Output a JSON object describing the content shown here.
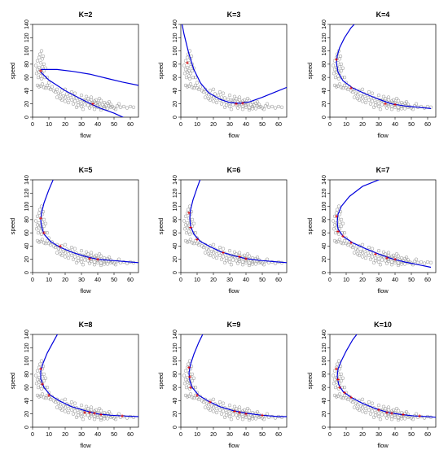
{
  "figure": {
    "panels": [
      {
        "title": "K=2",
        "xlabel": "flow",
        "ylabel": "speed"
      },
      {
        "title": "K=3",
        "xlabel": "flow",
        "ylabel": "speed"
      },
      {
        "title": "K=4",
        "xlabel": "flow",
        "ylabel": "speed"
      },
      {
        "title": "K=5",
        "xlabel": "flow",
        "ylabel": "speed"
      },
      {
        "title": "K=6",
        "xlabel": "flow",
        "ylabel": "speed"
      },
      {
        "title": "K=7",
        "xlabel": "flow",
        "ylabel": "speed"
      },
      {
        "title": "K=8",
        "xlabel": "flow",
        "ylabel": "speed"
      },
      {
        "title": "K=9",
        "xlabel": "flow",
        "ylabel": "speed"
      },
      {
        "title": "K=10",
        "xlabel": "flow",
        "ylabel": "speed"
      }
    ]
  },
  "chart_data": {
    "type": "scatter",
    "xlim": [
      0,
      65
    ],
    "ylim": [
      0,
      140
    ],
    "x_ticks": [
      0,
      10,
      20,
      30,
      40,
      50,
      60
    ],
    "y_ticks": [
      0,
      20,
      40,
      60,
      80,
      100,
      120,
      140
    ],
    "colors": {
      "points": "#8c8c8c",
      "curve": "#0000dd",
      "knots": "#dd0000"
    },
    "scatter_points": [
      [
        2,
        78
      ],
      [
        2.5,
        66
      ],
      [
        3,
        85
      ],
      [
        3,
        72
      ],
      [
        3.5,
        60
      ],
      [
        4,
        90
      ],
      [
        4,
        75
      ],
      [
        4,
        68
      ],
      [
        4.5,
        95
      ],
      [
        5,
        82
      ],
      [
        5,
        70
      ],
      [
        5,
        62
      ],
      [
        5.5,
        100
      ],
      [
        5.5,
        58
      ],
      [
        6,
        88
      ],
      [
        6,
        76
      ],
      [
        6,
        66
      ],
      [
        6.5,
        92
      ],
      [
        7,
        80
      ],
      [
        7,
        70
      ],
      [
        7.5,
        60
      ],
      [
        8,
        74
      ],
      [
        3,
        48
      ],
      [
        4,
        46
      ],
      [
        5,
        47
      ],
      [
        6,
        50
      ],
      [
        7,
        45
      ],
      [
        8,
        44
      ],
      [
        9,
        48
      ],
      [
        10,
        44
      ],
      [
        9,
        60
      ],
      [
        10,
        52
      ],
      [
        11,
        42
      ],
      [
        12,
        46
      ],
      [
        13,
        40
      ],
      [
        14,
        38
      ],
      [
        15,
        42
      ],
      [
        16,
        36
      ],
      [
        17,
        34
      ],
      [
        18,
        40
      ],
      [
        19,
        32
      ],
      [
        20,
        30
      ],
      [
        21,
        35
      ],
      [
        22,
        28
      ],
      [
        23,
        33
      ],
      [
        24,
        26
      ],
      [
        25,
        30
      ],
      [
        26,
        24
      ],
      [
        27,
        29
      ],
      [
        28,
        22
      ],
      [
        29,
        27
      ],
      [
        30,
        21
      ],
      [
        31,
        26
      ],
      [
        32,
        19
      ],
      [
        33,
        24
      ],
      [
        34,
        18
      ],
      [
        35,
        23
      ],
      [
        36,
        17
      ],
      [
        37,
        22
      ],
      [
        38,
        16
      ],
      [
        39,
        21
      ],
      [
        40,
        15
      ],
      [
        41,
        20
      ],
      [
        42,
        14
      ],
      [
        43,
        19
      ],
      [
        44,
        16
      ],
      [
        45,
        18
      ],
      [
        46,
        13
      ],
      [
        47,
        17
      ],
      [
        48,
        15
      ],
      [
        49,
        16
      ],
      [
        50,
        14
      ],
      [
        52,
        17
      ],
      [
        54,
        15
      ],
      [
        56,
        16
      ],
      [
        58,
        14
      ],
      [
        60,
        16
      ],
      [
        62,
        15
      ],
      [
        15,
        30
      ],
      [
        18,
        26
      ],
      [
        22,
        22
      ],
      [
        25,
        20
      ],
      [
        28,
        18
      ],
      [
        30,
        16
      ],
      [
        32,
        25
      ],
      [
        34,
        28
      ],
      [
        36,
        26
      ],
      [
        38,
        24
      ],
      [
        40,
        22
      ],
      [
        42,
        25
      ],
      [
        44,
        22
      ],
      [
        46,
        21
      ],
      [
        30,
        33
      ],
      [
        33,
        31
      ],
      [
        36,
        30
      ],
      [
        26,
        36
      ],
      [
        24,
        38
      ],
      [
        20,
        42
      ],
      [
        35,
        14
      ],
      [
        38,
        12
      ],
      [
        40,
        18
      ],
      [
        42,
        11
      ],
      [
        44,
        13
      ],
      [
        48,
        19
      ],
      [
        51,
        12
      ],
      [
        53,
        20
      ],
      [
        20,
        24
      ],
      [
        17,
        28
      ],
      [
        27,
        15
      ],
      [
        31,
        12
      ],
      [
        36,
        20
      ],
      [
        39,
        26
      ],
      [
        41,
        28
      ],
      [
        47,
        23
      ]
    ],
    "panels": [
      {
        "title": "K=2",
        "curves": [
          [
            [
              5,
              72
            ],
            [
              15,
              72
            ],
            [
              25,
              69
            ],
            [
              35,
              65
            ],
            [
              45,
              59
            ],
            [
              55,
              53
            ],
            [
              65,
              48
            ]
          ],
          [
            [
              5,
              68
            ],
            [
              10,
              56
            ],
            [
              20,
              40
            ],
            [
              30,
              27
            ],
            [
              40,
              15
            ],
            [
              50,
              6
            ],
            [
              60,
              -5
            ]
          ]
        ],
        "knots": [
          [
            5,
            70
          ],
          [
            37,
            20
          ]
        ]
      },
      {
        "title": "K=3",
        "curves": [
          [
            [
              0,
              150
            ],
            [
              2,
              125
            ],
            [
              5,
              95
            ],
            [
              8,
              72
            ],
            [
              12,
              52
            ],
            [
              17,
              37
            ],
            [
              24,
              27
            ],
            [
              30,
              22
            ],
            [
              36,
              21
            ],
            [
              42,
              23
            ],
            [
              50,
              30
            ],
            [
              58,
              38
            ],
            [
              65,
              45
            ]
          ]
        ],
        "knots": [
          [
            4,
            82
          ],
          [
            34,
            20
          ],
          [
            38,
            21
          ]
        ]
      },
      {
        "title": "K=4",
        "curves": [
          [
            [
              18,
              148
            ],
            [
              13,
              135
            ],
            [
              9,
              120
            ],
            [
              6,
              105
            ],
            [
              4.5,
              93
            ],
            [
              4,
              82
            ],
            [
              5,
              68
            ],
            [
              8,
              55
            ],
            [
              14,
              44
            ],
            [
              22,
              35
            ],
            [
              30,
              27
            ],
            [
              38,
              20
            ],
            [
              46,
              17
            ],
            [
              54,
              15
            ],
            [
              62,
              13
            ]
          ]
        ],
        "knots": [
          [
            4,
            87
          ],
          [
            13,
            44
          ],
          [
            34,
            20
          ],
          [
            40,
            19
          ]
        ]
      },
      {
        "title": "K=5",
        "curves": [
          [
            [
              14,
              148
            ],
            [
              10,
              125
            ],
            [
              7,
              105
            ],
            [
              5.5,
              90
            ],
            [
              5,
              80
            ],
            [
              5.5,
              70
            ],
            [
              7,
              58
            ],
            [
              11,
              47
            ],
            [
              17,
              38
            ],
            [
              25,
              30
            ],
            [
              33,
              24
            ],
            [
              40,
              20
            ],
            [
              50,
              18
            ],
            [
              60,
              16
            ],
            [
              65,
              15
            ]
          ]
        ],
        "knots": [
          [
            5,
            82
          ],
          [
            7,
            60
          ],
          [
            17,
            40
          ],
          [
            35,
            21
          ],
          [
            40,
            20
          ]
        ]
      },
      {
        "title": "K=6",
        "curves": [
          [
            [
              13,
              148
            ],
            [
              10,
              128
            ],
            [
              7.5,
              110
            ],
            [
              6,
              95
            ],
            [
              5.5,
              82
            ],
            [
              6,
              70
            ],
            [
              8,
              58
            ],
            [
              12,
              47
            ],
            [
              18,
              39
            ],
            [
              25,
              31
            ],
            [
              33,
              25
            ],
            [
              40,
              21
            ],
            [
              50,
              18
            ],
            [
              60,
              16
            ],
            [
              65,
              15
            ]
          ]
        ],
        "knots": [
          [
            5,
            90
          ],
          [
            6,
            68
          ],
          [
            10,
            50
          ],
          [
            26,
            30
          ],
          [
            36,
            24
          ],
          [
            40,
            21
          ]
        ]
      },
      {
        "title": "K=7",
        "curves": [
          [
            [
              45,
              148
            ],
            [
              32,
              142
            ],
            [
              20,
              130
            ],
            [
              12,
              115
            ],
            [
              7,
              100
            ],
            [
              5,
              88
            ],
            [
              4.5,
              76
            ],
            [
              5,
              66
            ],
            [
              8,
              55
            ],
            [
              14,
              45
            ],
            [
              22,
              36
            ],
            [
              30,
              28
            ],
            [
              38,
              21
            ],
            [
              46,
              16
            ],
            [
              54,
              12
            ],
            [
              62,
              8
            ]
          ]
        ],
        "knots": [
          [
            4,
            85
          ],
          [
            5,
            62
          ],
          [
            8,
            55
          ],
          [
            13,
            45
          ],
          [
            28,
            28
          ],
          [
            35,
            22
          ],
          [
            40,
            20
          ]
        ]
      },
      {
        "title": "K=8",
        "curves": [
          [
            [
              17,
              148
            ],
            [
              13,
              130
            ],
            [
              9,
              112
            ],
            [
              6.5,
              97
            ],
            [
              5,
              85
            ],
            [
              5,
              73
            ],
            [
              7,
              60
            ],
            [
              11,
              48
            ],
            [
              17,
              39
            ],
            [
              24,
              31
            ],
            [
              32,
              25
            ],
            [
              40,
              20
            ],
            [
              48,
              18
            ],
            [
              56,
              17
            ],
            [
              65,
              16
            ]
          ]
        ],
        "knots": [
          [
            5,
            88
          ],
          [
            6,
            65
          ],
          [
            10,
            48
          ],
          [
            32,
            22
          ],
          [
            35,
            22
          ],
          [
            38,
            21
          ],
          [
            42,
            19
          ],
          [
            55,
            17
          ]
        ]
      },
      {
        "title": "K=9",
        "curves": [
          [
            [
              15,
              148
            ],
            [
              11,
              128
            ],
            [
              8,
              110
            ],
            [
              6,
              95
            ],
            [
              5,
              82
            ],
            [
              5.5,
              70
            ],
            [
              7,
              60
            ],
            [
              11,
              48
            ],
            [
              17,
              39
            ],
            [
              24,
              31
            ],
            [
              32,
              25
            ],
            [
              40,
              21
            ],
            [
              50,
              18
            ],
            [
              60,
              16
            ],
            [
              65,
              16
            ]
          ]
        ],
        "knots": [
          [
            5,
            90
          ],
          [
            5.5,
            76
          ],
          [
            6,
            60
          ],
          [
            10,
            48
          ],
          [
            18,
            38
          ],
          [
            33,
            24
          ],
          [
            36,
            22
          ],
          [
            40,
            20
          ],
          [
            50,
            18
          ]
        ]
      },
      {
        "title": "K=10",
        "curves": [
          [
            [
              19,
              148
            ],
            [
              14,
              132
            ],
            [
              10,
              115
            ],
            [
              7,
              100
            ],
            [
              5,
              88
            ],
            [
              4.5,
              76
            ],
            [
              5.5,
              64
            ],
            [
              8,
              54
            ],
            [
              13,
              45
            ],
            [
              20,
              36
            ],
            [
              28,
              28
            ],
            [
              36,
              22
            ],
            [
              44,
              19
            ],
            [
              52,
              17
            ],
            [
              60,
              16
            ],
            [
              65,
              15
            ]
          ]
        ],
        "knots": [
          [
            4,
            88
          ],
          [
            5,
            72
          ],
          [
            6,
            60
          ],
          [
            9,
            52
          ],
          [
            13,
            45
          ],
          [
            30,
            26
          ],
          [
            35,
            22
          ],
          [
            38,
            21
          ],
          [
            45,
            19
          ],
          [
            55,
            17
          ]
        ]
      }
    ]
  }
}
